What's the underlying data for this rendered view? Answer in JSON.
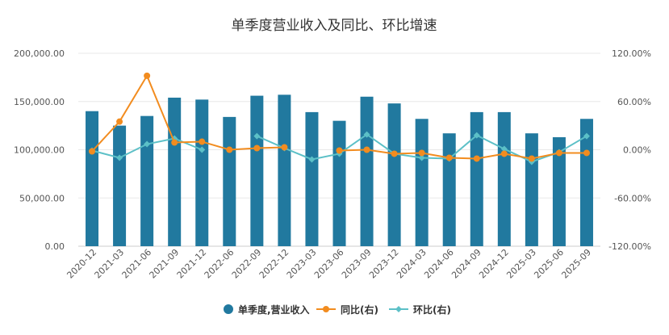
{
  "chart_data": {
    "type": "bar+line",
    "title": "单季度营业收入及同比、环比增速",
    "categories": [
      "2020-12",
      "2021-03",
      "2021-06",
      "2021-09",
      "2021-12",
      "2022-06",
      "2022-09",
      "2022-12",
      "2023-03",
      "2023-06",
      "2023-09",
      "2023-12",
      "2024-03",
      "2024-06",
      "2024-09",
      "2024-12",
      "2025-03",
      "2025-06",
      "2025-09"
    ],
    "left_axis": {
      "range": [
        0,
        200000
      ],
      "ticks": [
        "0.00",
        "50,000.00",
        "100,000.00",
        "150,000.00",
        "200,000.00"
      ],
      "tick_values": [
        0,
        50000,
        100000,
        150000,
        200000
      ]
    },
    "right_axis": {
      "range": [
        -120,
        120
      ],
      "ticks": [
        "-120.00%",
        "-60.00%",
        "0.00%",
        "60.00%",
        "120.00%"
      ],
      "tick_values": [
        -120,
        -60,
        0,
        60,
        120
      ]
    },
    "series": [
      {
        "name": "单季度,营业收入",
        "type": "bar",
        "axis": "left",
        "color": "#21799f",
        "values": [
          140000,
          125000,
          135000,
          154000,
          152000,
          134000,
          156000,
          157000,
          139000,
          130000,
          155000,
          148000,
          132000,
          117000,
          139000,
          139000,
          117000,
          113000,
          132000
        ]
      },
      {
        "name": "同比(右)",
        "type": "line",
        "axis": "right",
        "color": "#f28c1f",
        "values": [
          -2,
          35,
          92,
          9,
          10,
          0,
          2,
          3,
          null,
          -1,
          0,
          -5,
          -4,
          -10,
          -11,
          -5,
          -11,
          -4,
          -4
        ]
      },
      {
        "name": "环比(右)",
        "type": "line",
        "axis": "right",
        "color": "#5cc0c7",
        "values": [
          -1,
          -10,
          7,
          14,
          0,
          null,
          17,
          2,
          -12,
          -5,
          19,
          -5,
          -10,
          -11,
          18,
          1,
          -15,
          -3,
          17
        ]
      }
    ],
    "legend": {
      "position": "bottom",
      "items": [
        {
          "label": "单季度,营业收入",
          "color": "#21799f",
          "marker": "circle"
        },
        {
          "label": "同比(右)",
          "color": "#f28c1f",
          "marker": "line-dot"
        },
        {
          "label": "环比(右)",
          "color": "#5cc0c7",
          "marker": "line-diamond"
        }
      ]
    },
    "grid": true
  }
}
